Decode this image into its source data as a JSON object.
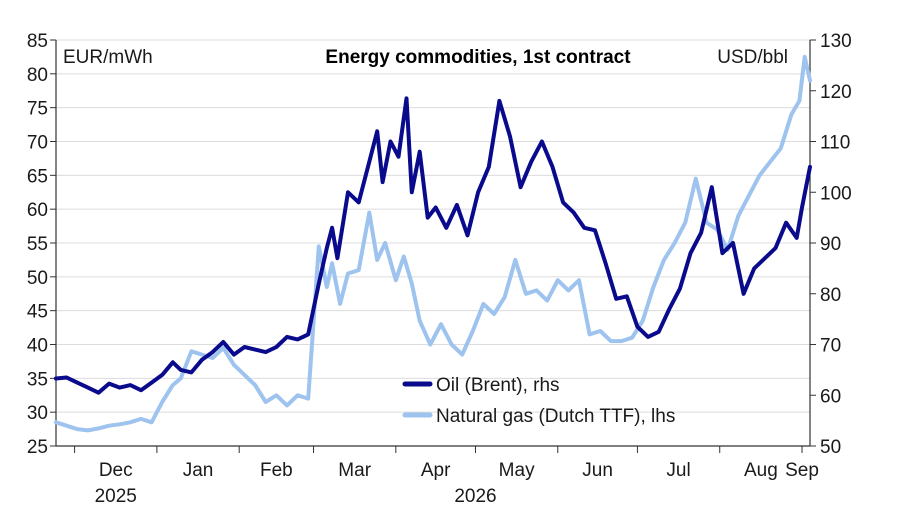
{
  "chart_data": {
    "type": "line",
    "title": "Energy commodities, 1st contract",
    "left_axis_label": "EUR/mWh",
    "right_axis_label": "USD/bbl",
    "left_ylim": [
      25,
      85
    ],
    "left_ticks": [
      25,
      30,
      35,
      40,
      45,
      50,
      55,
      60,
      65,
      70,
      75,
      80,
      85
    ],
    "right_ylim": [
      50,
      130
    ],
    "right_ticks": [
      50,
      60,
      70,
      80,
      90,
      100,
      110,
      120,
      130
    ],
    "x_ticks": [
      "Dec",
      "Jan",
      "Feb",
      "Mar",
      "Apr",
      "May",
      "Jun",
      "Jul",
      "Aug",
      "Sep"
    ],
    "x_years": [
      {
        "label": "2025",
        "at": "Dec"
      },
      {
        "label": "2026",
        "at": "Apr-May"
      }
    ],
    "x_range": [
      "2025-11-24",
      "2026-09-04"
    ],
    "grid": "horizontal",
    "legend_position": "bottom-center",
    "series": [
      {
        "name": "Oil (Brent), rhs",
        "axis": "right",
        "color": "#0a0a8c",
        "points": [
          [
            "2025-11-24",
            63.3
          ],
          [
            "2025-11-28",
            63.5
          ],
          [
            "2025-12-02",
            62.5
          ],
          [
            "2025-12-06",
            61.5
          ],
          [
            "2025-12-10",
            60.5
          ],
          [
            "2025-12-14",
            62.3
          ],
          [
            "2025-12-18",
            61.5
          ],
          [
            "2025-12-22",
            62.0
          ],
          [
            "2025-12-26",
            61.0
          ],
          [
            "2025-12-30",
            62.5
          ],
          [
            "2026-01-03",
            64.0
          ],
          [
            "2026-01-07",
            66.5
          ],
          [
            "2026-01-10",
            65.0
          ],
          [
            "2026-01-14",
            64.5
          ],
          [
            "2026-01-18",
            67.0
          ],
          [
            "2026-01-22",
            68.5
          ],
          [
            "2026-01-26",
            70.5
          ],
          [
            "2026-01-30",
            68.0
          ],
          [
            "2026-02-03",
            69.5
          ],
          [
            "2026-02-07",
            69.0
          ],
          [
            "2026-02-11",
            68.5
          ],
          [
            "2026-02-15",
            69.5
          ],
          [
            "2026-02-19",
            71.5
          ],
          [
            "2026-02-23",
            71.0
          ],
          [
            "2026-02-27",
            72.0
          ],
          [
            "2026-03-03",
            82.0
          ],
          [
            "2026-03-06",
            89.0
          ],
          [
            "2026-03-08",
            93.0
          ],
          [
            "2026-03-10",
            87.0
          ],
          [
            "2026-03-14",
            100.0
          ],
          [
            "2026-03-18",
            98.0
          ],
          [
            "2026-03-22",
            106.0
          ],
          [
            "2026-03-25",
            112.0
          ],
          [
            "2026-03-27",
            102.0
          ],
          [
            "2026-03-30",
            110.0
          ],
          [
            "2026-04-02",
            107.0
          ],
          [
            "2026-04-05",
            118.5
          ],
          [
            "2026-04-07",
            100.0
          ],
          [
            "2026-04-10",
            108.0
          ],
          [
            "2026-04-13",
            95.0
          ],
          [
            "2026-04-16",
            97.0
          ],
          [
            "2026-04-20",
            93.0
          ],
          [
            "2026-04-24",
            97.5
          ],
          [
            "2026-04-28",
            91.5
          ],
          [
            "2026-05-02",
            100.0
          ],
          [
            "2026-05-06",
            105.0
          ],
          [
            "2026-05-10",
            118.0
          ],
          [
            "2026-05-14",
            111.0
          ],
          [
            "2026-05-18",
            101.0
          ],
          [
            "2026-05-22",
            106.0
          ],
          [
            "2026-05-26",
            110.0
          ],
          [
            "2026-05-30",
            105.0
          ],
          [
            "2026-06-03",
            98.0
          ],
          [
            "2026-06-07",
            96.0
          ],
          [
            "2026-06-11",
            93.0
          ],
          [
            "2026-06-15",
            92.5
          ],
          [
            "2026-06-19",
            86.0
          ],
          [
            "2026-06-23",
            79.0
          ],
          [
            "2026-06-27",
            79.5
          ],
          [
            "2026-07-01",
            73.5
          ],
          [
            "2026-07-05",
            71.5
          ],
          [
            "2026-07-09",
            72.5
          ],
          [
            "2026-07-13",
            77.0
          ],
          [
            "2026-07-17",
            81.0
          ],
          [
            "2026-07-21",
            88.0
          ],
          [
            "2026-07-25",
            92.0
          ],
          [
            "2026-07-29",
            101.0
          ],
          [
            "2026-08-02",
            88.0
          ],
          [
            "2026-08-06",
            90.0
          ],
          [
            "2026-08-10",
            80.0
          ],
          [
            "2026-08-14",
            85.0
          ],
          [
            "2026-08-18",
            87.0
          ],
          [
            "2026-08-22",
            89.0
          ],
          [
            "2026-08-26",
            94.0
          ],
          [
            "2026-08-30",
            91.0
          ],
          [
            "2026-09-01",
            97.0
          ],
          [
            "2026-09-04",
            105.0
          ]
        ]
      },
      {
        "name": "Natural gas (Dutch TTF), lhs",
        "axis": "left",
        "color": "#9dc3ee",
        "points": [
          [
            "2025-11-24",
            28.5
          ],
          [
            "2025-11-28",
            28.0
          ],
          [
            "2025-12-02",
            27.5
          ],
          [
            "2025-12-06",
            27.3
          ],
          [
            "2025-12-10",
            27.6
          ],
          [
            "2025-12-14",
            28.0
          ],
          [
            "2025-12-18",
            28.2
          ],
          [
            "2025-12-22",
            28.5
          ],
          [
            "2025-12-26",
            29.0
          ],
          [
            "2025-12-30",
            28.5
          ],
          [
            "2026-01-03",
            31.5
          ],
          [
            "2026-01-07",
            34.0
          ],
          [
            "2026-01-10",
            35.0
          ],
          [
            "2026-01-14",
            39.0
          ],
          [
            "2026-01-18",
            38.5
          ],
          [
            "2026-01-22",
            38.0
          ],
          [
            "2026-01-26",
            39.5
          ],
          [
            "2026-01-30",
            37.0
          ],
          [
            "2026-02-03",
            35.5
          ],
          [
            "2026-02-07",
            34.0
          ],
          [
            "2026-02-11",
            31.5
          ],
          [
            "2026-02-15",
            32.5
          ],
          [
            "2026-02-19",
            31.0
          ],
          [
            "2026-02-23",
            32.5
          ],
          [
            "2026-02-27",
            32.0
          ],
          [
            "2026-03-03",
            54.5
          ],
          [
            "2026-03-06",
            48.5
          ],
          [
            "2026-03-08",
            52.0
          ],
          [
            "2026-03-11",
            46.0
          ],
          [
            "2026-03-14",
            50.5
          ],
          [
            "2026-03-18",
            51.0
          ],
          [
            "2026-03-22",
            59.5
          ],
          [
            "2026-03-25",
            52.5
          ],
          [
            "2026-03-28",
            55.0
          ],
          [
            "2026-04-01",
            49.5
          ],
          [
            "2026-04-04",
            53.0
          ],
          [
            "2026-04-07",
            49.0
          ],
          [
            "2026-04-10",
            43.5
          ],
          [
            "2026-04-14",
            40.0
          ],
          [
            "2026-04-18",
            43.0
          ],
          [
            "2026-04-22",
            40.0
          ],
          [
            "2026-04-26",
            38.5
          ],
          [
            "2026-04-30",
            42.0
          ],
          [
            "2026-05-04",
            46.0
          ],
          [
            "2026-05-08",
            44.5
          ],
          [
            "2026-05-12",
            47.0
          ],
          [
            "2026-05-16",
            52.5
          ],
          [
            "2026-05-20",
            47.5
          ],
          [
            "2026-05-24",
            48.0
          ],
          [
            "2026-05-28",
            46.5
          ],
          [
            "2026-06-01",
            49.5
          ],
          [
            "2026-06-05",
            48.0
          ],
          [
            "2026-06-09",
            49.5
          ],
          [
            "2026-06-13",
            41.5
          ],
          [
            "2026-06-17",
            42.0
          ],
          [
            "2026-06-21",
            40.5
          ],
          [
            "2026-06-25",
            40.5
          ],
          [
            "2026-06-29",
            41.0
          ],
          [
            "2026-07-03",
            43.5
          ],
          [
            "2026-07-07",
            48.5
          ],
          [
            "2026-07-11",
            52.5
          ],
          [
            "2026-07-15",
            55.0
          ],
          [
            "2026-07-19",
            58.0
          ],
          [
            "2026-07-23",
            64.5
          ],
          [
            "2026-07-27",
            58.0
          ],
          [
            "2026-07-31",
            57.0
          ],
          [
            "2026-08-04",
            54.0
          ],
          [
            "2026-08-08",
            59.0
          ],
          [
            "2026-08-12",
            62.0
          ],
          [
            "2026-08-16",
            65.0
          ],
          [
            "2026-08-20",
            67.0
          ],
          [
            "2026-08-24",
            69.0
          ],
          [
            "2026-08-28",
            74.0
          ],
          [
            "2026-08-31",
            76.0
          ],
          [
            "2026-09-02",
            82.5
          ],
          [
            "2026-09-04",
            79.0
          ]
        ]
      }
    ]
  }
}
